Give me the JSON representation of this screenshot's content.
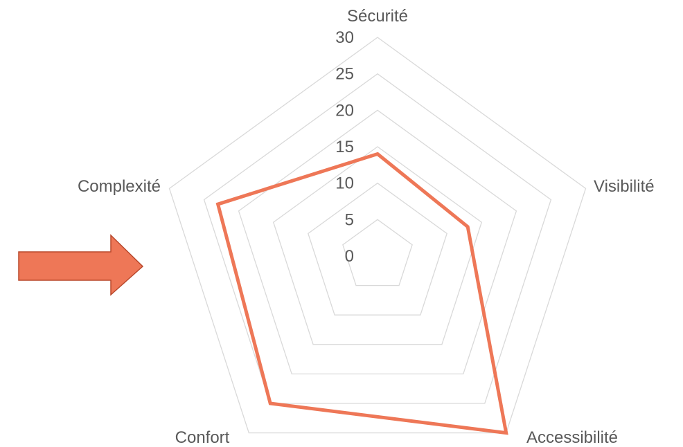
{
  "chart_data": {
    "type": "radar",
    "categories": [
      "Sécurité",
      "Visibilité",
      "Accessibilité",
      "Confort",
      "Complexité"
    ],
    "series": [
      {
        "values": [
          14,
          13,
          30,
          25,
          23
        ]
      }
    ],
    "rlim": [
      0,
      30
    ],
    "ticks": [
      "0",
      "5",
      "10",
      "15",
      "20",
      "25",
      "30"
    ],
    "grid": true,
    "colors": {
      "series": "#ee7757",
      "grid": "#d9d9d9",
      "text": "#595959"
    }
  },
  "decorations": [
    {
      "icon": "right-arrow-icon",
      "fill": "#ee7757",
      "stroke": "#b8482c"
    }
  ]
}
